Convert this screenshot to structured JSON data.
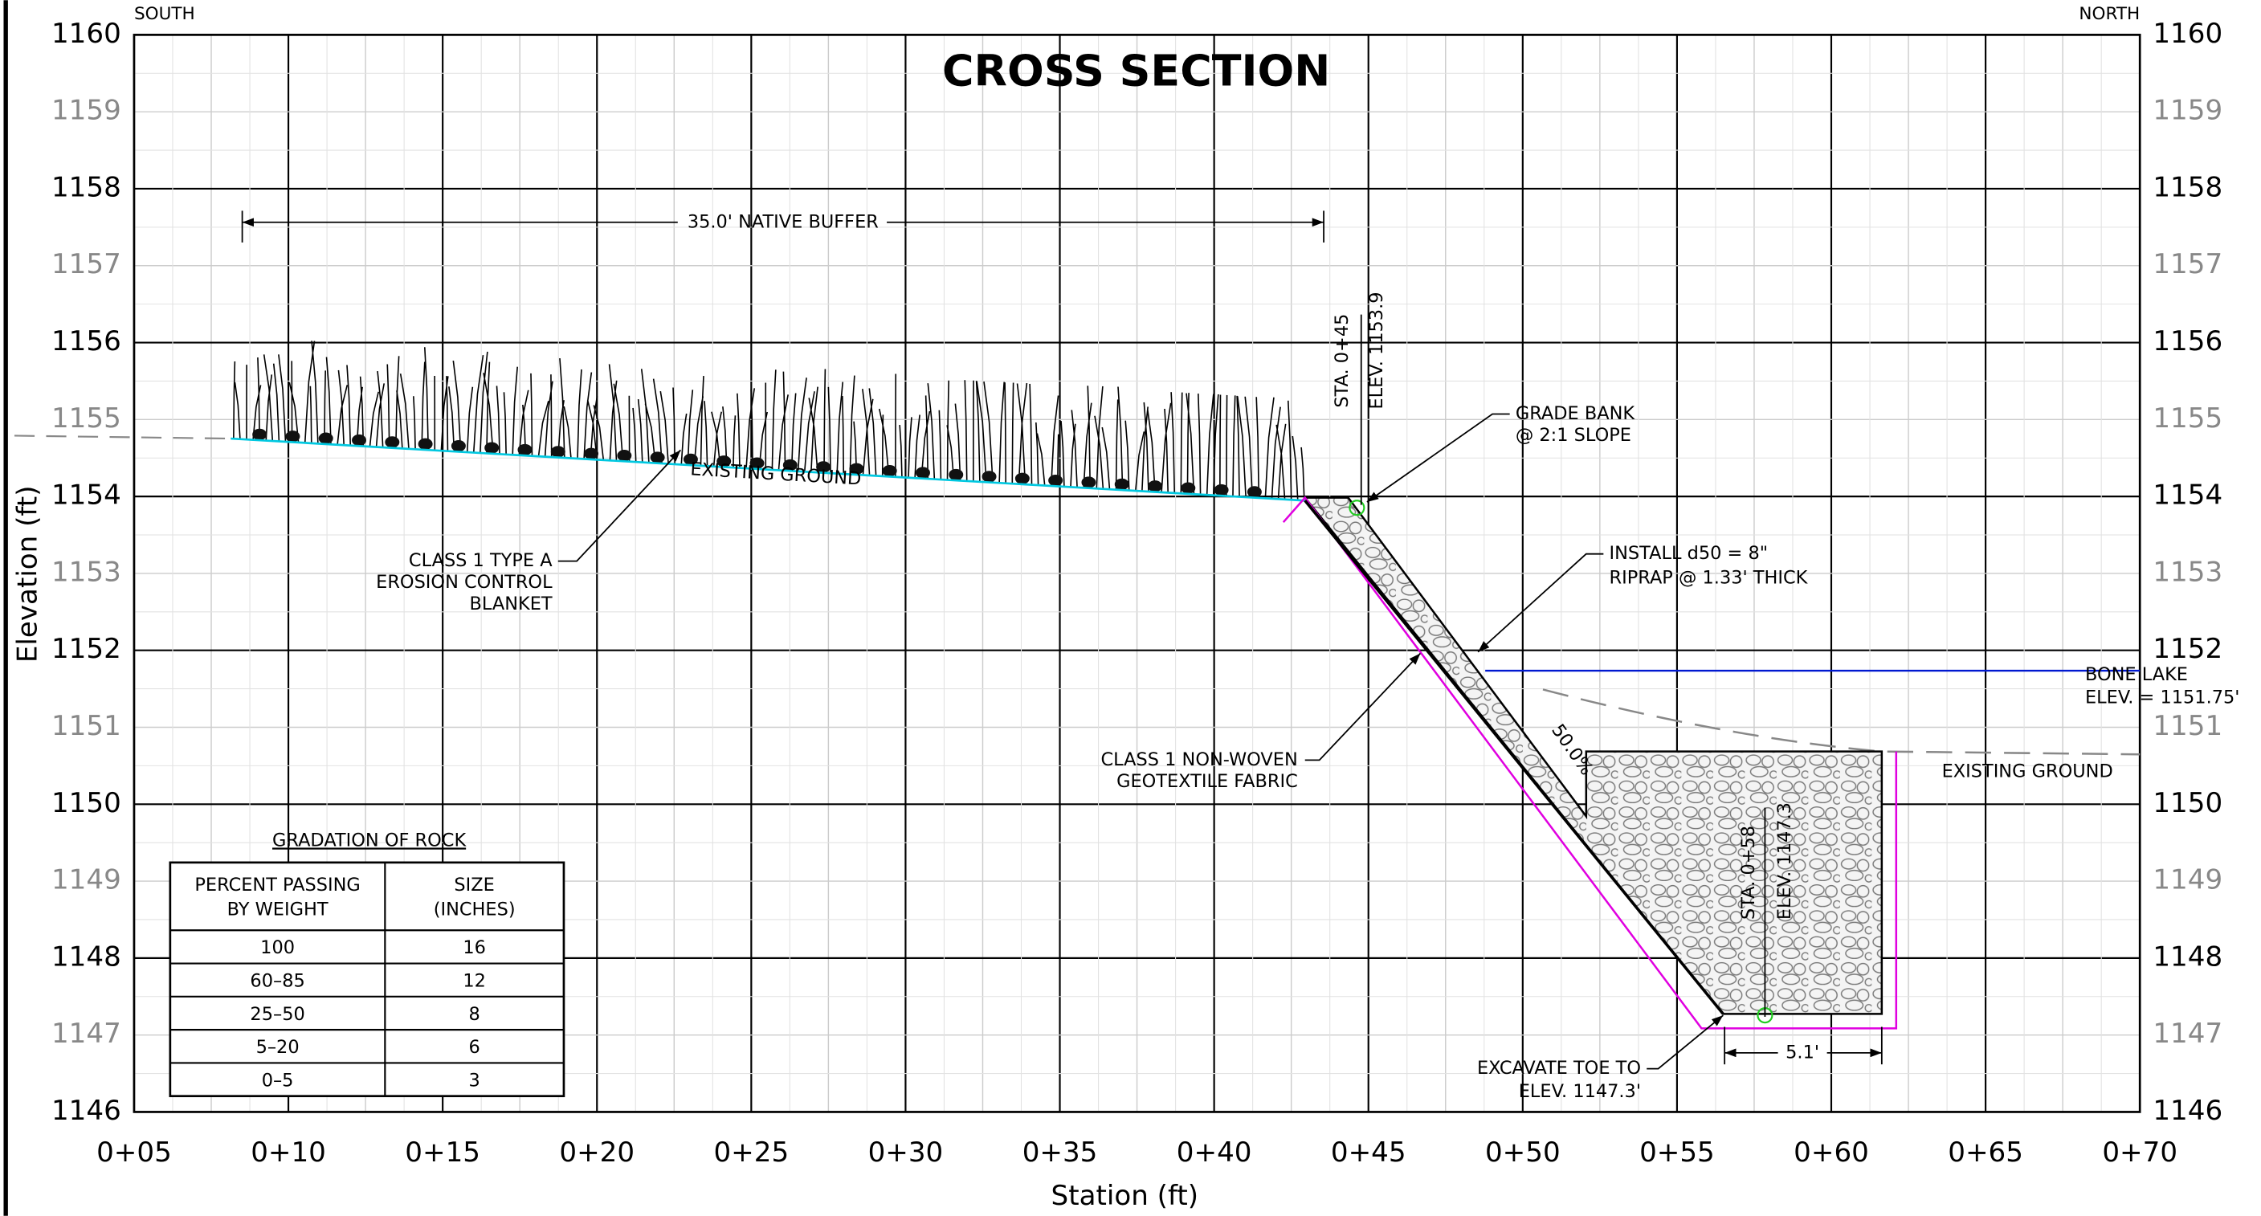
{
  "title": "CROSS SECTION",
  "corners": {
    "left": "SOUTH",
    "right": "NORTH"
  },
  "axes": {
    "y_label": "Elevation (ft)",
    "x_label": "Station (ft)",
    "y_ticks": [
      "1160",
      "1159",
      "1158",
      "1157",
      "1156",
      "1155",
      "1154",
      "1153",
      "1152",
      "1151",
      "1150",
      "1149",
      "1148",
      "1147",
      "1146"
    ],
    "x_ticks": [
      "0+05",
      "0+10",
      "0+15",
      "0+20",
      "0+25",
      "0+30",
      "0+35",
      "0+40",
      "0+45",
      "0+50",
      "0+55",
      "0+60",
      "0+65",
      "0+70"
    ]
  },
  "annotations": {
    "buffer": "35.0' NATIVE BUFFER",
    "existing_ground_left": "EXISTING GROUND",
    "sta_top": "STA. 0+45",
    "elev_top": "ELEV. 1153.9",
    "grade_bank": [
      "GRADE BANK",
      "@ 2:1 SLOPE"
    ],
    "riprap": [
      "INSTALL d50 = 8\"",
      "RIPRAP @ 1.33' THICK"
    ],
    "bone_lake": [
      "BONE LAKE",
      "ELEV. = 1151.75'"
    ],
    "existing_ground_right": "EXISTING GROUND",
    "geotextile": [
      "CLASS 1 NON-WOVEN",
      "GEOTEXTILE FABRIC"
    ],
    "slope": "50.0%",
    "sta_toe": "STA. 0+58",
    "elev_toe": "ELEV. 1147.3",
    "excavate": [
      "EXCAVATE TOE TO",
      "ELEV. 1147.3'"
    ],
    "toe_width": "5.1'",
    "blanket": [
      "CLASS 1 TYPE A",
      "EROSION CONTROL",
      "BLANKET"
    ]
  },
  "table": {
    "title": "GRADATION OF ROCK",
    "headers": [
      [
        "PERCENT PASSING",
        "BY WEIGHT"
      ],
      [
        "SIZE",
        "(INCHES)"
      ]
    ],
    "rows": [
      [
        "100",
        "16"
      ],
      [
        "60–85",
        "12"
      ],
      [
        "25–50",
        "8"
      ],
      [
        "5–20",
        "6"
      ],
      [
        "0–5",
        "3"
      ]
    ]
  }
}
